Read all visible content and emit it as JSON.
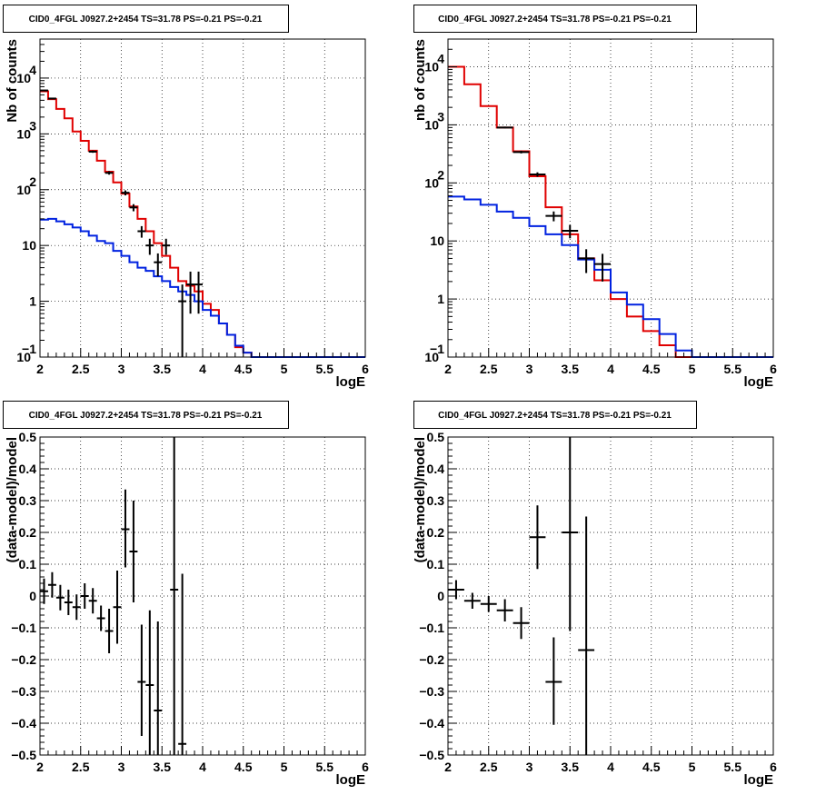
{
  "chart_data": [
    {
      "type": "histogram",
      "title": "CID0_4FGL J0927.2+2454 TS=31.78 PS=-0.21 PS=-0.21",
      "xlabel": "logE",
      "ylabel": "Nb of counts",
      "xlim": [
        2,
        6
      ],
      "ylim": [
        0.1,
        50000
      ],
      "log_y": true,
      "grid": true,
      "xticks": [
        "2",
        "2.5",
        "3",
        "3.5",
        "4",
        "4.5",
        "5",
        "5.5",
        "6"
      ],
      "yticks": [
        {
          "value": 0.1,
          "label": "10",
          "exp": "−1"
        },
        {
          "value": 1,
          "label": "1",
          "exp": ""
        },
        {
          "value": 10,
          "label": "10",
          "exp": ""
        },
        {
          "value": 100,
          "label": "10",
          "exp": "2"
        },
        {
          "value": 1000,
          "label": "10",
          "exp": "3"
        },
        {
          "value": 10000,
          "label": "10",
          "exp": "4"
        }
      ],
      "series": [
        {
          "color": "#e00000",
          "bin_edges": [
            2.0,
            2.1,
            2.2,
            2.3,
            2.4,
            2.5,
            2.6,
            2.7,
            2.8,
            2.9,
            3.0,
            3.1,
            3.2,
            3.3,
            3.4,
            3.5,
            3.6,
            3.7,
            3.8,
            3.9,
            4.0,
            4.1,
            4.2,
            4.3,
            4.4,
            4.5,
            4.6,
            4.7,
            4.8,
            4.9,
            5.0,
            5.1,
            5.2,
            5.3,
            5.4,
            5.5,
            5.6,
            5.7,
            5.8,
            5.9,
            6.0
          ],
          "values": [
            5800,
            4200,
            2800,
            1900,
            1100,
            750,
            500,
            330,
            210,
            135,
            85,
            50,
            30,
            18,
            11,
            6.5,
            4,
            2.3,
            1.9,
            1.5,
            0.9,
            0.7,
            0.4,
            0.25,
            0.15,
            0.12,
            0.1,
            0.1,
            0.1,
            0.1,
            0.1,
            0.1,
            0.1,
            0.1,
            0.1,
            0.1,
            0.1,
            0.1,
            0.1,
            0.1
          ]
        },
        {
          "color": "#0022e0",
          "bin_edges": [
            2.0,
            2.1,
            2.2,
            2.3,
            2.4,
            2.5,
            2.6,
            2.7,
            2.8,
            2.9,
            3.0,
            3.1,
            3.2,
            3.3,
            3.4,
            3.5,
            3.6,
            3.7,
            3.8,
            3.9,
            4.0,
            4.1,
            4.2,
            4.3,
            4.4,
            4.5,
            4.6,
            4.7,
            4.8,
            4.9,
            5.0,
            5.1,
            5.2,
            5.3,
            5.4,
            5.5,
            5.6,
            5.7,
            5.8,
            5.9,
            6.0
          ],
          "values": [
            29,
            30,
            27,
            24,
            21,
            18,
            15,
            12,
            11,
            8,
            6.5,
            5,
            4,
            3.5,
            2.8,
            2.3,
            1.8,
            1.5,
            1.3,
            1.0,
            0.7,
            0.55,
            0.4,
            0.25,
            0.16,
            0.12,
            0.1,
            0.1,
            0.1,
            0.1,
            0.1,
            0.1,
            0.1,
            0.1,
            0.1,
            0.1,
            0.1,
            0.1,
            0.1,
            0.1
          ]
        }
      ],
      "data_points": [
        {
          "x": 2.05,
          "y": 6000,
          "lo": 5850,
          "hi": 6150,
          "xerr": 0.05
        },
        {
          "x": 2.15,
          "y": 4300,
          "lo": 4170,
          "hi": 4430,
          "xerr": 0.05
        },
        {
          "x": 2.65,
          "y": 480,
          "lo": 458,
          "hi": 502,
          "xerr": 0.05
        },
        {
          "x": 2.85,
          "y": 200,
          "lo": 186,
          "hi": 214,
          "xerr": 0.05
        },
        {
          "x": 3.05,
          "y": 88,
          "lo": 79,
          "hi": 97,
          "xerr": 0.05
        },
        {
          "x": 3.15,
          "y": 48,
          "lo": 41,
          "hi": 55,
          "xerr": 0.05
        },
        {
          "x": 3.25,
          "y": 18,
          "lo": 13.8,
          "hi": 22.2,
          "xerr": 0.05
        },
        {
          "x": 3.35,
          "y": 10,
          "lo": 6.8,
          "hi": 13.2,
          "xerr": 0.05
        },
        {
          "x": 3.45,
          "y": 5,
          "lo": 2.8,
          "hi": 7.2,
          "xerr": 0.05
        },
        {
          "x": 3.55,
          "y": 10,
          "lo": 6.8,
          "hi": 13.2,
          "xerr": 0.05
        },
        {
          "x": 3.75,
          "y": 1,
          "lo": 0.1,
          "hi": 2.0,
          "xerr": 0.05
        },
        {
          "x": 3.85,
          "y": 2,
          "lo": 0.6,
          "hi": 3.4,
          "xerr": 0.05
        },
        {
          "x": 3.95,
          "y": 2,
          "lo": 0.6,
          "hi": 3.4,
          "xerr": 0.05
        }
      ]
    },
    {
      "type": "histogram",
      "title": "CID0_4FGL J0927.2+2454 TS=31.78 PS=-0.21 PS=-0.21",
      "xlabel": "logE",
      "ylabel": "nb of counts",
      "xlim": [
        2,
        6
      ],
      "ylim": [
        0.1,
        30000
      ],
      "log_y": true,
      "grid": true,
      "xticks": [
        "2",
        "2.5",
        "3",
        "3.5",
        "4",
        "4.5",
        "5",
        "5.5",
        "6"
      ],
      "yticks": [
        {
          "value": 0.1,
          "label": "10",
          "exp": "−1"
        },
        {
          "value": 1,
          "label": "1",
          "exp": ""
        },
        {
          "value": 10,
          "label": "10",
          "exp": ""
        },
        {
          "value": 100,
          "label": "10",
          "exp": "2"
        },
        {
          "value": 1000,
          "label": "10",
          "exp": "3"
        },
        {
          "value": 10000,
          "label": "10",
          "exp": "4"
        }
      ],
      "series": [
        {
          "color": "#e00000",
          "bin_edges": [
            2.0,
            2.2,
            2.4,
            2.6,
            2.8,
            3.0,
            3.2,
            3.4,
            3.6,
            3.8,
            4.0,
            4.2,
            4.4,
            4.6,
            4.8,
            5.0,
            5.2,
            5.4,
            5.6,
            5.8,
            6.0
          ],
          "values": [
            10000,
            5000,
            2100,
            900,
            350,
            130,
            38,
            13,
            5,
            2.1,
            1.0,
            0.5,
            0.28,
            0.16,
            0.1,
            0.1,
            0.1,
            0.1,
            0.1,
            0.1
          ]
        },
        {
          "color": "#0022e0",
          "bin_edges": [
            2.0,
            2.2,
            2.4,
            2.6,
            2.8,
            3.0,
            3.2,
            3.4,
            3.6,
            3.8,
            4.0,
            4.2,
            4.4,
            4.6,
            4.8,
            5.0,
            5.2,
            5.4,
            5.6,
            5.8,
            6.0
          ],
          "values": [
            58,
            52,
            42,
            32,
            25,
            18,
            13,
            8.5,
            4.8,
            3.2,
            1.3,
            0.8,
            0.45,
            0.25,
            0.13,
            0.1,
            0.1,
            0.1,
            0.1,
            0.1
          ]
        }
      ],
      "data_points": [
        {
          "x": 2.7,
          "y": 900,
          "lo": 870,
          "hi": 930,
          "xerr": 0.1
        },
        {
          "x": 2.9,
          "y": 340,
          "lo": 322,
          "hi": 358,
          "xerr": 0.1
        },
        {
          "x": 3.1,
          "y": 140,
          "lo": 128,
          "hi": 152,
          "xerr": 0.1
        },
        {
          "x": 3.3,
          "y": 27,
          "lo": 21.8,
          "hi": 32.2,
          "xerr": 0.1
        },
        {
          "x": 3.5,
          "y": 15,
          "lo": 11.1,
          "hi": 18.9,
          "xerr": 0.1
        },
        {
          "x": 3.7,
          "y": 5,
          "lo": 2.8,
          "hi": 7.2,
          "xerr": 0.1
        },
        {
          "x": 3.9,
          "y": 4,
          "lo": 2.0,
          "hi": 6.0,
          "xerr": 0.1
        }
      ]
    },
    {
      "type": "scatter",
      "title": "CID0_4FGL J0927.2+2454 TS=31.78 PS=-0.21 PS=-0.21",
      "xlabel": "logE",
      "ylabel": "(data-model)/model",
      "xlim": [
        2,
        6
      ],
      "ylim": [
        -0.5,
        0.5
      ],
      "log_y": false,
      "grid": true,
      "xticks": [
        "2",
        "2.5",
        "3",
        "3.5",
        "4",
        "4.5",
        "5",
        "5.5",
        "6"
      ],
      "yticks": [
        {
          "value": -0.5,
          "label": "−0.5",
          "exp": ""
        },
        {
          "value": -0.4,
          "label": "−0.4",
          "exp": ""
        },
        {
          "value": -0.3,
          "label": "−0.3",
          "exp": ""
        },
        {
          "value": -0.2,
          "label": "−0.2",
          "exp": ""
        },
        {
          "value": -0.1,
          "label": "−0.1",
          "exp": ""
        },
        {
          "value": 0,
          "label": "0",
          "exp": ""
        },
        {
          "value": 0.1,
          "label": "0.1",
          "exp": ""
        },
        {
          "value": 0.2,
          "label": "0.2",
          "exp": ""
        },
        {
          "value": 0.3,
          "label": "0.3",
          "exp": ""
        },
        {
          "value": 0.4,
          "label": "0.4",
          "exp": ""
        },
        {
          "value": 0.5,
          "label": "0.5",
          "exp": ""
        }
      ],
      "series": [],
      "data_points": [
        {
          "x": 2.05,
          "y": 0.015,
          "lo": -0.025,
          "hi": 0.055,
          "xerr": 0.05
        },
        {
          "x": 2.15,
          "y": 0.035,
          "lo": -0.005,
          "hi": 0.075,
          "xerr": 0.05
        },
        {
          "x": 2.25,
          "y": -0.005,
          "lo": -0.045,
          "hi": 0.035,
          "xerr": 0.05
        },
        {
          "x": 2.35,
          "y": -0.02,
          "lo": -0.06,
          "hi": 0.02,
          "xerr": 0.05
        },
        {
          "x": 2.45,
          "y": -0.035,
          "lo": -0.075,
          "hi": 0.005,
          "xerr": 0.05
        },
        {
          "x": 2.55,
          "y": 0,
          "lo": -0.04,
          "hi": 0.04,
          "xerr": 0.05
        },
        {
          "x": 2.65,
          "y": -0.015,
          "lo": -0.055,
          "hi": 0.025,
          "xerr": 0.05
        },
        {
          "x": 2.75,
          "y": -0.07,
          "lo": -0.11,
          "hi": -0.03,
          "xerr": 0.05
        },
        {
          "x": 2.85,
          "y": -0.11,
          "lo": -0.18,
          "hi": -0.04,
          "xerr": 0.05
        },
        {
          "x": 2.95,
          "y": -0.035,
          "lo": -0.15,
          "hi": 0.08,
          "xerr": 0.05
        },
        {
          "x": 3.05,
          "y": 0.21,
          "lo": 0.09,
          "hi": 0.335,
          "xerr": 0.05
        },
        {
          "x": 3.15,
          "y": 0.14,
          "lo": -0.02,
          "hi": 0.3,
          "xerr": 0.05
        },
        {
          "x": 3.25,
          "y": -0.27,
          "lo": -0.44,
          "hi": -0.09,
          "xerr": 0.05
        },
        {
          "x": 3.35,
          "y": -0.28,
          "lo": -0.5,
          "hi": -0.045,
          "xerr": 0.05
        },
        {
          "x": 3.45,
          "y": -0.36,
          "lo": -0.5,
          "hi": -0.08,
          "xerr": 0.05
        },
        {
          "x": 3.65,
          "y": 0.02,
          "lo": -0.5,
          "hi": 0.5,
          "xerr": 0.05
        },
        {
          "x": 3.75,
          "y": -0.465,
          "lo": -0.5,
          "hi": 0.07,
          "xerr": 0.05
        }
      ]
    },
    {
      "type": "scatter",
      "title": "CID0_4FGL J0927.2+2454 TS=31.78 PS=-0.21 PS=-0.21",
      "xlabel": "logE",
      "ylabel": "(data-model)/model",
      "xlim": [
        2,
        6
      ],
      "ylim": [
        -0.5,
        0.5
      ],
      "log_y": false,
      "grid": true,
      "xticks": [
        "2",
        "2.5",
        "3",
        "3.5",
        "4",
        "4.5",
        "5",
        "5.5",
        "6"
      ],
      "yticks": [
        {
          "value": -0.5,
          "label": "−0.5",
          "exp": ""
        },
        {
          "value": -0.4,
          "label": "−0.4",
          "exp": ""
        },
        {
          "value": -0.3,
          "label": "−0.3",
          "exp": ""
        },
        {
          "value": -0.2,
          "label": "−0.2",
          "exp": ""
        },
        {
          "value": -0.1,
          "label": "−0.1",
          "exp": ""
        },
        {
          "value": 0,
          "label": "0",
          "exp": ""
        },
        {
          "value": 0.1,
          "label": "0.1",
          "exp": ""
        },
        {
          "value": 0.2,
          "label": "0.2",
          "exp": ""
        },
        {
          "value": 0.3,
          "label": "0.3",
          "exp": ""
        },
        {
          "value": 0.4,
          "label": "0.4",
          "exp": ""
        },
        {
          "value": 0.5,
          "label": "0.5",
          "exp": ""
        }
      ],
      "series": [],
      "data_points": [
        {
          "x": 2.1,
          "y": 0.02,
          "lo": -0.01,
          "hi": 0.05,
          "xerr": 0.1
        },
        {
          "x": 2.3,
          "y": -0.015,
          "lo": -0.04,
          "hi": 0.01,
          "xerr": 0.1
        },
        {
          "x": 2.5,
          "y": -0.025,
          "lo": -0.05,
          "hi": 0.0,
          "xerr": 0.1
        },
        {
          "x": 2.7,
          "y": -0.045,
          "lo": -0.08,
          "hi": -0.01,
          "xerr": 0.1
        },
        {
          "x": 2.9,
          "y": -0.085,
          "lo": -0.135,
          "hi": -0.035,
          "xerr": 0.1
        },
        {
          "x": 3.1,
          "y": 0.185,
          "lo": 0.085,
          "hi": 0.285,
          "xerr": 0.1
        },
        {
          "x": 3.3,
          "y": -0.27,
          "lo": -0.405,
          "hi": -0.13,
          "xerr": 0.1
        },
        {
          "x": 3.5,
          "y": 0.2,
          "lo": -0.11,
          "hi": 0.5,
          "xerr": 0.1
        },
        {
          "x": 3.7,
          "y": -0.17,
          "lo": -0.5,
          "hi": 0.25,
          "xerr": 0.1
        }
      ]
    }
  ]
}
